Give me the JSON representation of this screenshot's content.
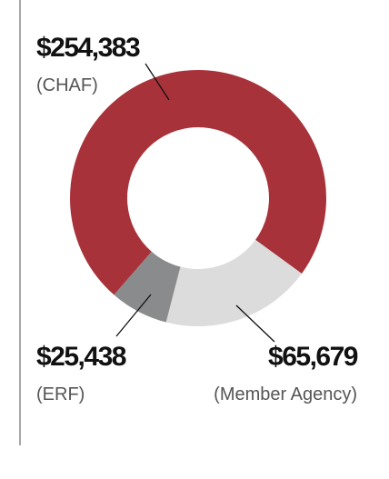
{
  "chart_data": {
    "type": "donut",
    "categories": [
      "(CHAF)",
      "(Member Agency)",
      "(ERF)"
    ],
    "values": [
      254383,
      65679,
      25438
    ],
    "value_labels": [
      "$254,383",
      "$65,679",
      "$25,438"
    ],
    "colors": [
      "#a8323a",
      "#dcdcdd",
      "#8a8b8c"
    ]
  }
}
